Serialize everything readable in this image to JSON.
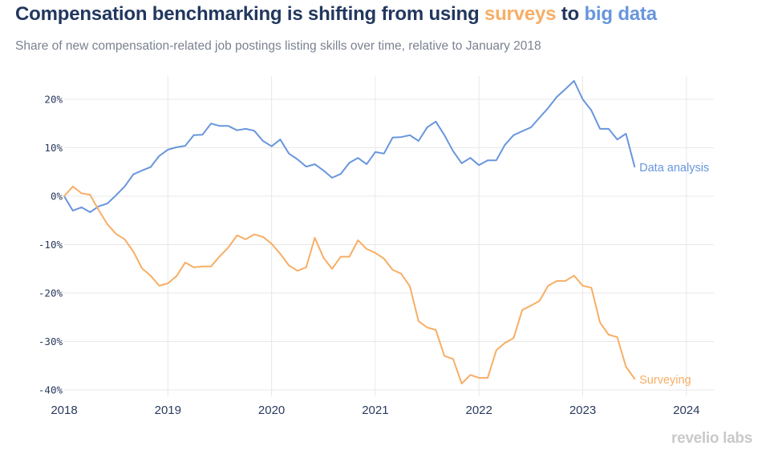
{
  "header": {
    "title_parts": {
      "prefix": "Compensation benchmarking is shifting from using ",
      "surveys": "surveys",
      "middle": " to ",
      "big_data": "big data"
    },
    "subtitle": "Share of new compensation-related job postings listing skills over time, relative to January 2018"
  },
  "brand": "revelio labs",
  "colors": {
    "title": "#22375f",
    "surveys": "#f7ae65",
    "data_analysis": "#6896dc",
    "grid": "#e8e8e8",
    "axis_text": "#2a3a5e"
  },
  "chart_data": {
    "type": "line",
    "title": "Compensation benchmarking is shifting from using surveys to big data",
    "subtitle": "Share of new compensation-related job postings listing skills over time, relative to January 2018",
    "xlabel": "",
    "ylabel": "",
    "x_start": "2018-01",
    "x_step": "monthly",
    "xlim": [
      2018,
      2024.25
    ],
    "ylim": [
      -41,
      25
    ],
    "x_ticks": [
      2018,
      2019,
      2020,
      2021,
      2022,
      2023,
      2024
    ],
    "x_tick_labels": [
      "2018",
      "2019",
      "2020",
      "2021",
      "2022",
      "2023",
      "2024"
    ],
    "y_ticks": [
      -40,
      -30,
      -20,
      -10,
      0,
      10,
      20
    ],
    "y_tick_labels": [
      "-40%",
      "-30%",
      "-20%",
      "-10%",
      "0%",
      "10%",
      "20%"
    ],
    "grid": true,
    "legend": "direct labels at line ends",
    "series": [
      {
        "name": "Data analysis",
        "color": "#6896dc",
        "values": [
          0,
          -3.0,
          -2.3,
          -3.3,
          -2.1,
          -1.5,
          0.2,
          2.0,
          4.5,
          5.3,
          6.0,
          8.3,
          9.6,
          10.1,
          10.4,
          12.6,
          12.7,
          15.0,
          14.5,
          14.5,
          13.6,
          13.9,
          13.5,
          11.4,
          10.3,
          11.7,
          8.8,
          7.6,
          6.1,
          6.6,
          5.3,
          3.8,
          4.6,
          6.9,
          7.9,
          6.6,
          9.1,
          8.8,
          12.1,
          12.2,
          12.6,
          11.4,
          14.2,
          15.4,
          12.6,
          9.3,
          6.8,
          7.9,
          6.4,
          7.4,
          7.4,
          10.6,
          12.6,
          13.4,
          14.2,
          16.2,
          18.2,
          20.5,
          22.1,
          23.8,
          20.0,
          17.7,
          13.9,
          13.9,
          11.7,
          12.9,
          6.1
        ]
      },
      {
        "name": "Surveying",
        "color": "#f7ae65",
        "values": [
          0,
          2.0,
          0.6,
          0.3,
          -2.9,
          -5.8,
          -7.8,
          -8.9,
          -11.4,
          -14.9,
          -16.4,
          -18.5,
          -18.0,
          -16.5,
          -13.7,
          -14.7,
          -14.5,
          -14.5,
          -12.4,
          -10.6,
          -8.1,
          -8.9,
          -7.9,
          -8.4,
          -9.8,
          -11.9,
          -14.3,
          -15.4,
          -14.7,
          -8.6,
          -12.7,
          -15.0,
          -12.5,
          -12.5,
          -9.1,
          -10.9,
          -11.7,
          -12.9,
          -15.2,
          -16.0,
          -18.6,
          -25.8,
          -27.1,
          -27.6,
          -33.0,
          -33.6,
          -38.7,
          -36.9,
          -37.5,
          -37.5,
          -31.8,
          -30.3,
          -29.3,
          -23.5,
          -22.6,
          -21.6,
          -18.5,
          -17.5,
          -17.5,
          -16.4,
          -18.5,
          -18.9,
          -26.1,
          -28.6,
          -29.1,
          -35.2,
          -37.7
        ]
      }
    ]
  }
}
